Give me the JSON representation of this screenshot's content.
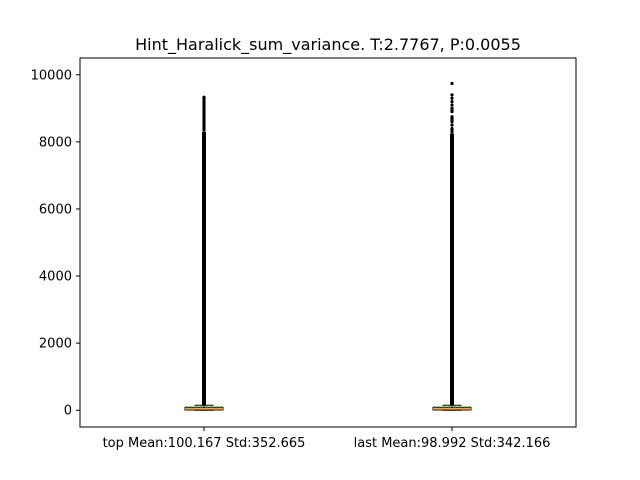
{
  "chart_data": {
    "type": "box",
    "title": "Hint_Haralick_sum_variance. T:2.7767, P:0.0055",
    "xlabel": "",
    "ylabel": "",
    "ylim": [
      -500,
      10500
    ],
    "yticks": [
      0,
      2000,
      4000,
      6000,
      8000,
      10000
    ],
    "categories": [
      "top Mean:100.167 Std:352.665",
      "last Mean:98.992 Std:342.166"
    ],
    "boxes": [
      {
        "q1": 8,
        "median": 35,
        "q3": 85,
        "whisker_low": 0,
        "whisker_high": 150,
        "mean": 100.167,
        "outlier_range": [
          150,
          8300
        ],
        "sparse_outliers": [
          8350,
          8400,
          8450,
          8500,
          8550,
          8600,
          8650,
          8700,
          8750,
          8800,
          8850,
          8900,
          8950,
          9000,
          9050,
          9100,
          9150,
          9200,
          9250,
          9300,
          9330
        ]
      },
      {
        "q1": 8,
        "median": 35,
        "q3": 85,
        "whisker_low": 0,
        "whisker_high": 150,
        "mean": 98.992,
        "outlier_range": [
          150,
          8250
        ],
        "sparse_outliers": [
          8300,
          8350,
          8400,
          8500,
          8600,
          8650,
          8700,
          8750,
          8900,
          8950,
          9000,
          9100,
          9200,
          9300,
          9400,
          9740
        ]
      }
    ],
    "colors": {
      "box": "#000000",
      "median": "#ff7f0e",
      "mean": "#2ca02c",
      "outlier": "#000000"
    },
    "grid": false
  }
}
